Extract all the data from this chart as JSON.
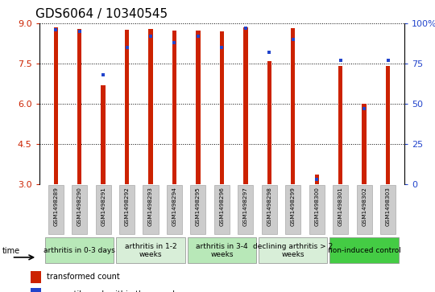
{
  "title": "GDS6064 / 10340545",
  "samples": [
    "GSM1498289",
    "GSM1498290",
    "GSM1498291",
    "GSM1498292",
    "GSM1498293",
    "GSM1498294",
    "GSM1498295",
    "GSM1498296",
    "GSM1498297",
    "GSM1498298",
    "GSM1498299",
    "GSM1498300",
    "GSM1498301",
    "GSM1498302",
    "GSM1498303"
  ],
  "red_values": [
    8.85,
    8.8,
    6.7,
    8.75,
    8.78,
    8.72,
    8.72,
    8.7,
    8.85,
    7.6,
    8.82,
    3.35,
    7.42,
    6.0,
    7.42
  ],
  "blue_values": [
    96,
    95,
    68,
    85,
    92,
    88,
    92,
    85,
    97,
    82,
    90,
    3,
    77,
    47,
    77
  ],
  "ylim_left": [
    3,
    9
  ],
  "ylim_right": [
    0,
    100
  ],
  "yticks_left": [
    3,
    4.5,
    6,
    7.5,
    9
  ],
  "yticks_right": [
    0,
    25,
    50,
    75,
    100
  ],
  "ytick_labels_right": [
    "0",
    "25",
    "50",
    "75",
    "100%"
  ],
  "group_info": [
    {
      "label": "arthritis in 0-3 days",
      "start": 0,
      "end": 3,
      "color": "#b8e8b8"
    },
    {
      "label": "arthritis in 1-2\nweeks",
      "start": 3,
      "end": 6,
      "color": "#d8eed8"
    },
    {
      "label": "arthritis in 3-4\nweeks",
      "start": 6,
      "end": 9,
      "color": "#b8e8b8"
    },
    {
      "label": "declining arthritis > 2\nweeks",
      "start": 9,
      "end": 12,
      "color": "#d8eed8"
    },
    {
      "label": "non-induced control",
      "start": 12,
      "end": 15,
      "color": "#44cc44"
    }
  ],
  "bar_color_red": "#cc2200",
  "bar_color_blue": "#2244cc",
  "bar_width": 0.18,
  "background_color": "#ffffff",
  "tick_color_left": "#cc2200",
  "tick_color_right": "#2244cc",
  "title_fontsize": 11,
  "sample_box_color": "#cccccc",
  "sample_box_edge": "#aaaaaa"
}
